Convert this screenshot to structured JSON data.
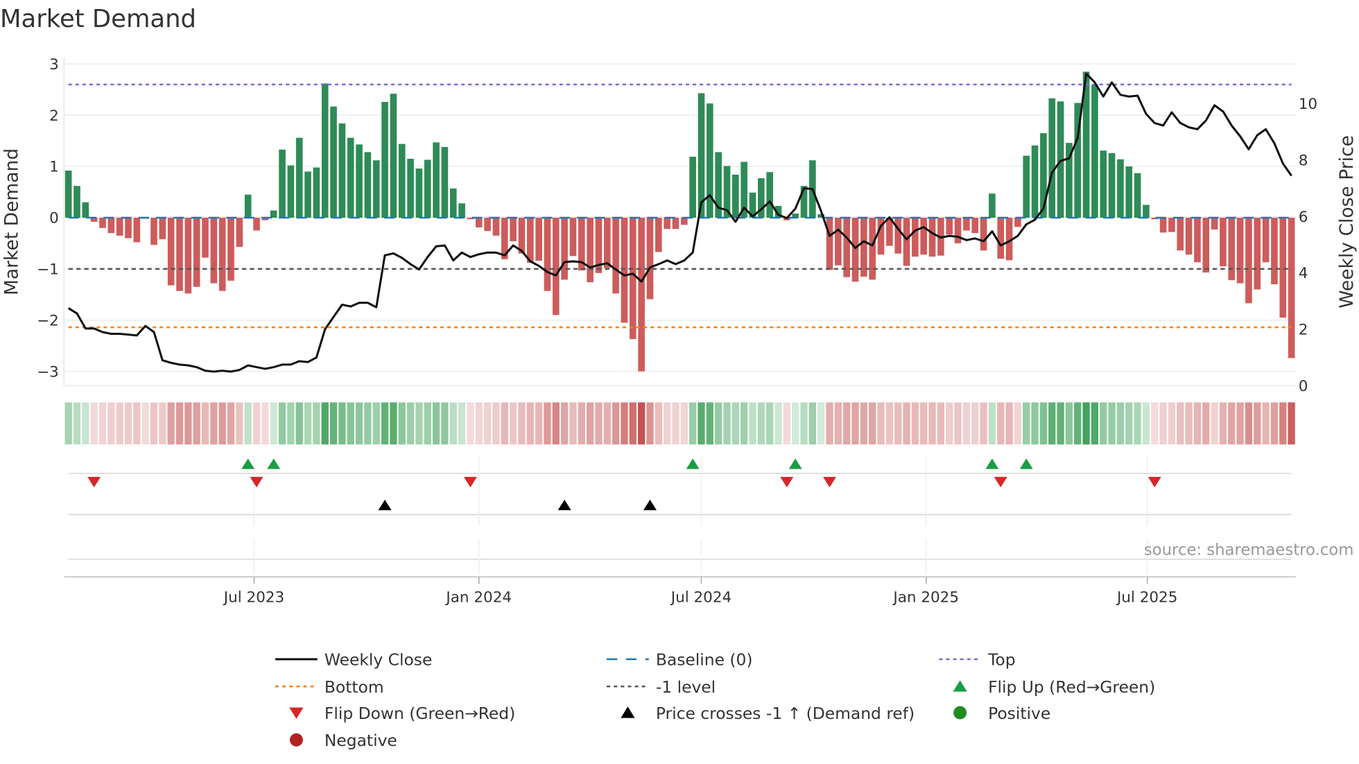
{
  "title": "Market Demand",
  "source": "source: sharemaestro.com",
  "chart_data": {
    "type": "bar",
    "title": "Market Demand",
    "ylabel": "Market Demand",
    "y2label": "Weekly Close Price",
    "start_date": "2023-01-30",
    "frequency": "weekly",
    "ylim": [
      -3.28,
      3.12
    ],
    "y2lim": [
      0,
      11.62
    ],
    "grid": true,
    "yticks": [
      {
        "v": -3,
        "label": "−3"
      },
      {
        "v": -2,
        "label": "−2"
      },
      {
        "v": -1,
        "label": "−1"
      },
      {
        "v": 0,
        "label": "0"
      },
      {
        "v": 1,
        "label": "1"
      },
      {
        "v": 2,
        "label": "2"
      },
      {
        "v": 3,
        "label": "3"
      }
    ],
    "y2ticks": [
      {
        "v": 0,
        "label": "0"
      },
      {
        "v": 2,
        "label": "2"
      },
      {
        "v": 4,
        "label": "4"
      },
      {
        "v": 6,
        "label": "6"
      },
      {
        "v": 8,
        "label": "8"
      },
      {
        "v": 10,
        "label": "10"
      }
    ],
    "xticks": [
      {
        "date": "2023-07-01",
        "label": "Jul 2023"
      },
      {
        "date": "2024-01-01",
        "label": "Jan 2024"
      },
      {
        "date": "2024-07-01",
        "label": "Jul 2024"
      },
      {
        "date": "2025-01-01",
        "label": "Jan 2025"
      },
      {
        "date": "2025-07-01",
        "label": "Jul 2025"
      }
    ],
    "levels": {
      "top": 2.6,
      "bottom": -2.14,
      "minus_one": -1,
      "baseline": 0
    },
    "demand": [
      0.92,
      0.62,
      0.3,
      -0.08,
      -0.2,
      -0.3,
      -0.35,
      -0.4,
      -0.48,
      -0.02,
      -0.53,
      -0.42,
      -1.32,
      -1.43,
      -1.48,
      -1.35,
      -0.78,
      -1.28,
      -1.43,
      -1.23,
      -0.57,
      0.45,
      -0.25,
      -0.05,
      0.14,
      1.33,
      1.02,
      1.56,
      0.9,
      0.98,
      2.62,
      2.17,
      1.84,
      1.56,
      1.43,
      1.28,
      1.12,
      2.26,
      2.42,
      1.44,
      1.15,
      0.96,
      1.13,
      1.47,
      1.38,
      0.57,
      0.28,
      -0.03,
      -0.19,
      -0.26,
      -0.35,
      -0.81,
      -0.46,
      -0.7,
      -0.88,
      -0.84,
      -1.43,
      -1.9,
      -1.21,
      -0.75,
      -1.03,
      -1.26,
      -1.08,
      -0.98,
      -1.48,
      -2.05,
      -2.37,
      -3.0,
      -1.59,
      -0.67,
      -0.22,
      -0.22,
      -0.14,
      1.19,
      2.43,
      2.23,
      1.28,
      1.01,
      0.84,
      1.09,
      0.49,
      0.77,
      0.89,
      0.23,
      -0.05,
      0.08,
      0.62,
      1.12,
      0.07,
      -1.02,
      -0.93,
      -1.16,
      -1.25,
      -1.15,
      -1.21,
      -0.72,
      -0.55,
      -0.7,
      -0.94,
      -0.76,
      -0.72,
      -0.76,
      -0.74,
      -0.33,
      -0.5,
      -0.25,
      -0.3,
      -0.64,
      0.47,
      -0.8,
      -0.83,
      -0.18,
      1.21,
      1.41,
      1.65,
      2.33,
      2.27,
      1.46,
      2.24,
      2.85,
      2.6,
      1.31,
      1.26,
      1.14,
      1.0,
      0.87,
      0.25,
      -0.03,
      -0.29,
      -0.28,
      -0.64,
      -0.72,
      -0.87,
      -1.07,
      -0.23,
      -0.95,
      -1.22,
      -1.28,
      -1.67,
      -1.4,
      -0.87,
      -1.3,
      -1.95,
      -2.74
    ],
    "weekly_close": [
      2.75,
      2.56,
      2.03,
      2.03,
      1.9,
      1.84,
      1.84,
      1.81,
      1.78,
      2.12,
      1.9,
      0.9,
      0.81,
      0.75,
      0.72,
      0.66,
      0.53,
      0.5,
      0.53,
      0.5,
      0.56,
      0.72,
      0.66,
      0.6,
      0.66,
      0.75,
      0.75,
      0.87,
      0.84,
      1.0,
      2.0,
      2.44,
      2.87,
      2.81,
      2.94,
      2.94,
      2.78,
      4.62,
      4.69,
      4.53,
      4.31,
      4.12,
      4.56,
      4.94,
      4.97,
      4.44,
      4.72,
      4.56,
      4.66,
      4.72,
      4.72,
      4.62,
      4.97,
      4.78,
      4.41,
      4.25,
      4.03,
      3.91,
      4.38,
      4.41,
      4.38,
      4.19,
      4.28,
      4.34,
      4.12,
      3.91,
      3.97,
      3.69,
      4.19,
      4.31,
      4.44,
      4.31,
      4.44,
      4.72,
      6.5,
      6.75,
      6.31,
      6.22,
      5.81,
      6.31,
      6.0,
      6.25,
      6.53,
      6.06,
      5.94,
      6.28,
      7.0,
      6.97,
      6.19,
      5.31,
      5.53,
      5.25,
      4.88,
      5.12,
      4.97,
      5.66,
      5.97,
      5.56,
      5.19,
      5.5,
      5.62,
      5.41,
      5.25,
      5.31,
      5.28,
      5.16,
      5.22,
      5.12,
      5.47,
      4.97,
      5.12,
      5.31,
      5.72,
      5.88,
      6.28,
      7.56,
      7.97,
      8.06,
      8.78,
      11.06,
      10.75,
      10.25,
      10.75,
      10.31,
      10.25,
      10.28,
      9.63,
      9.31,
      9.22,
      9.69,
      9.31,
      9.16,
      9.09,
      9.4,
      9.94,
      9.72,
      9.22,
      8.84,
      8.38,
      8.88,
      9.09,
      8.59,
      7.88,
      7.44
    ],
    "flip_up_weeks": [
      21,
      24,
      73,
      85,
      108,
      112
    ],
    "flip_down_weeks": [
      3,
      22,
      47,
      84,
      89,
      109,
      127
    ],
    "price_cross_weeks": [
      37,
      58,
      68
    ],
    "colors": {
      "positive": "#2e8b57",
      "negative": "#cd5c5c",
      "line": "#111111",
      "baseline": "#1f77b4",
      "top": "#7b68d8",
      "bottom": "#ff7f0e",
      "minus_one": "#555555",
      "flip_up": "#1a9e45",
      "flip_down": "#d62728",
      "cross": "#000000",
      "pos_dot": "#228b22",
      "neg_dot": "#b22222"
    },
    "legend": {
      "placement": "bottom",
      "items": [
        {
          "label": "Weekly Close",
          "kind": "line"
        },
        {
          "label": "Baseline (0)",
          "kind": "baseline"
        },
        {
          "label": "Top",
          "kind": "top"
        },
        {
          "label": "Bottom",
          "kind": "bottom"
        },
        {
          "label": "-1 level",
          "kind": "minus_one"
        },
        {
          "label": "Flip Up (Red→Green)",
          "kind": "flip_up"
        },
        {
          "label": "Flip Down (Green→Red)",
          "kind": "flip_down"
        },
        {
          "label": "Price crosses -1 ↑ (Demand ref)",
          "kind": "cross"
        },
        {
          "label": "Positive",
          "kind": "pos_dot"
        },
        {
          "label": "Negative",
          "kind": "neg_dot"
        }
      ]
    }
  }
}
